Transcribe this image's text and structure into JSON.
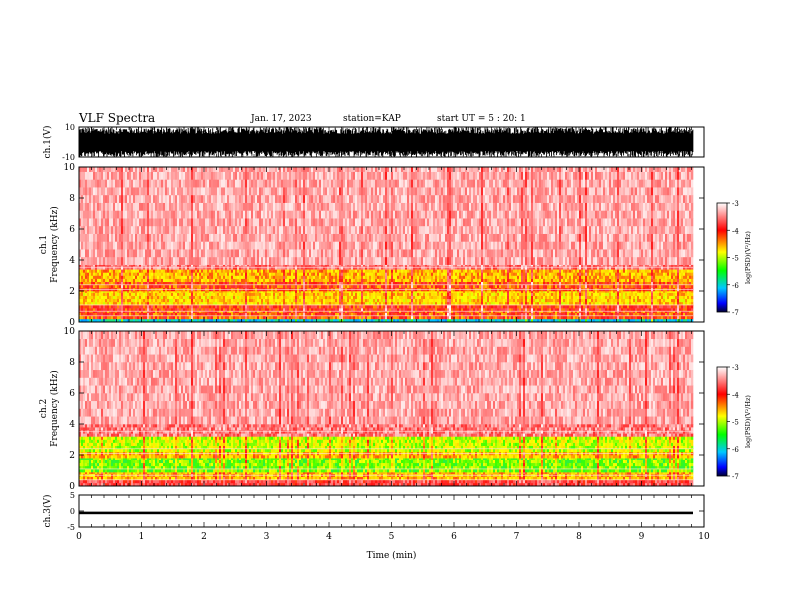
{
  "header": {
    "title": "VLF Spectra",
    "date": "Jan. 17, 2023",
    "station": "station=KAP",
    "start": "start UT =  5 : 20: 1"
  },
  "colors": {
    "scale": [
      "#ffffff",
      "#ffc8c8",
      "#ff0000",
      "#ffff00",
      "#00ff00",
      "#00c0ff",
      "#0000ff",
      "#000033"
    ],
    "trace": "#000000"
  },
  "chart_data": [
    {
      "type": "line",
      "panel": "ch1-waveform",
      "ylabel": "ch.1(V)",
      "ylim": [
        -10,
        10
      ],
      "yticks": [
        "10",
        "-10"
      ],
      "xlim": [
        0,
        10
      ],
      "description_values": {
        "amplitude_min": -10,
        "amplitude_max": 10
      }
    },
    {
      "type": "heatmap",
      "panel": "ch1-spectrogram",
      "ylabel": "ch.1\nFrequency (kHz)",
      "ylabel_line1": "ch.1",
      "ylabel_line2": "Frequency (kHz)",
      "ylim": [
        0,
        10
      ],
      "yticks": [
        "0",
        "2",
        "4",
        "6",
        "8",
        "10"
      ],
      "xlim": [
        0,
        9.8
      ],
      "bands": [
        {
          "from": 0.0,
          "to": 0.2,
          "level": -5.5
        },
        {
          "from": 0.2,
          "to": 0.7,
          "level": -3.9
        },
        {
          "from": 0.7,
          "to": 1.1,
          "level": -3.8
        },
        {
          "from": 1.1,
          "to": 2.0,
          "level": -4.3
        },
        {
          "from": 2.0,
          "to": 2.6,
          "level": -3.9
        },
        {
          "from": 2.6,
          "to": 3.4,
          "level": -4.2
        },
        {
          "from": 3.4,
          "to": 3.7,
          "level": -3.4
        },
        {
          "from": 3.7,
          "to": 10.0,
          "level": -3.0
        }
      ],
      "colorbar": {
        "label": "log(PSD)(V²/Hz)",
        "range": [
          -7,
          -3
        ],
        "ticks": [
          "-3",
          "-4",
          "-5",
          "-6",
          "-7"
        ]
      }
    },
    {
      "type": "heatmap",
      "panel": "ch2-spectrogram",
      "ylabel_line1": "ch.2",
      "ylabel_line2": "Frequency (kHz)",
      "ylim": [
        0,
        10
      ],
      "yticks": [
        "0",
        "2",
        "4",
        "6",
        "8",
        "10"
      ],
      "xlim": [
        0,
        9.8
      ],
      "bands": [
        {
          "from": 0.0,
          "to": 0.4,
          "level": -3.6
        },
        {
          "from": 0.4,
          "to": 0.9,
          "level": -4.2
        },
        {
          "from": 0.9,
          "to": 1.8,
          "level": -4.8
        },
        {
          "from": 1.8,
          "to": 2.2,
          "level": -4.2
        },
        {
          "from": 2.2,
          "to": 3.2,
          "level": -4.6
        },
        {
          "from": 3.2,
          "to": 4.0,
          "level": -3.4
        },
        {
          "from": 4.0,
          "to": 10.0,
          "level": -3.0
        }
      ],
      "colorbar": {
        "label": "log(PSD)(V²/Hz)",
        "range": [
          -7,
          -3
        ],
        "ticks": [
          "-3",
          "-4",
          "-5",
          "-6",
          "-7"
        ]
      }
    },
    {
      "type": "line",
      "panel": "ch3-waveform",
      "ylabel": "ch.3(V)",
      "ylim": [
        -5,
        5
      ],
      "yticks": [
        "5",
        "0",
        "-5"
      ],
      "xlim": [
        0,
        10
      ],
      "description_values": {
        "level": -0.6,
        "amplitude": 0.4
      }
    }
  ],
  "xaxis": {
    "label": "Time (min)",
    "ticks": [
      "0",
      "1",
      "2",
      "3",
      "4",
      "5",
      "6",
      "7",
      "8",
      "9",
      "10"
    ],
    "range": [
      0,
      10
    ]
  }
}
